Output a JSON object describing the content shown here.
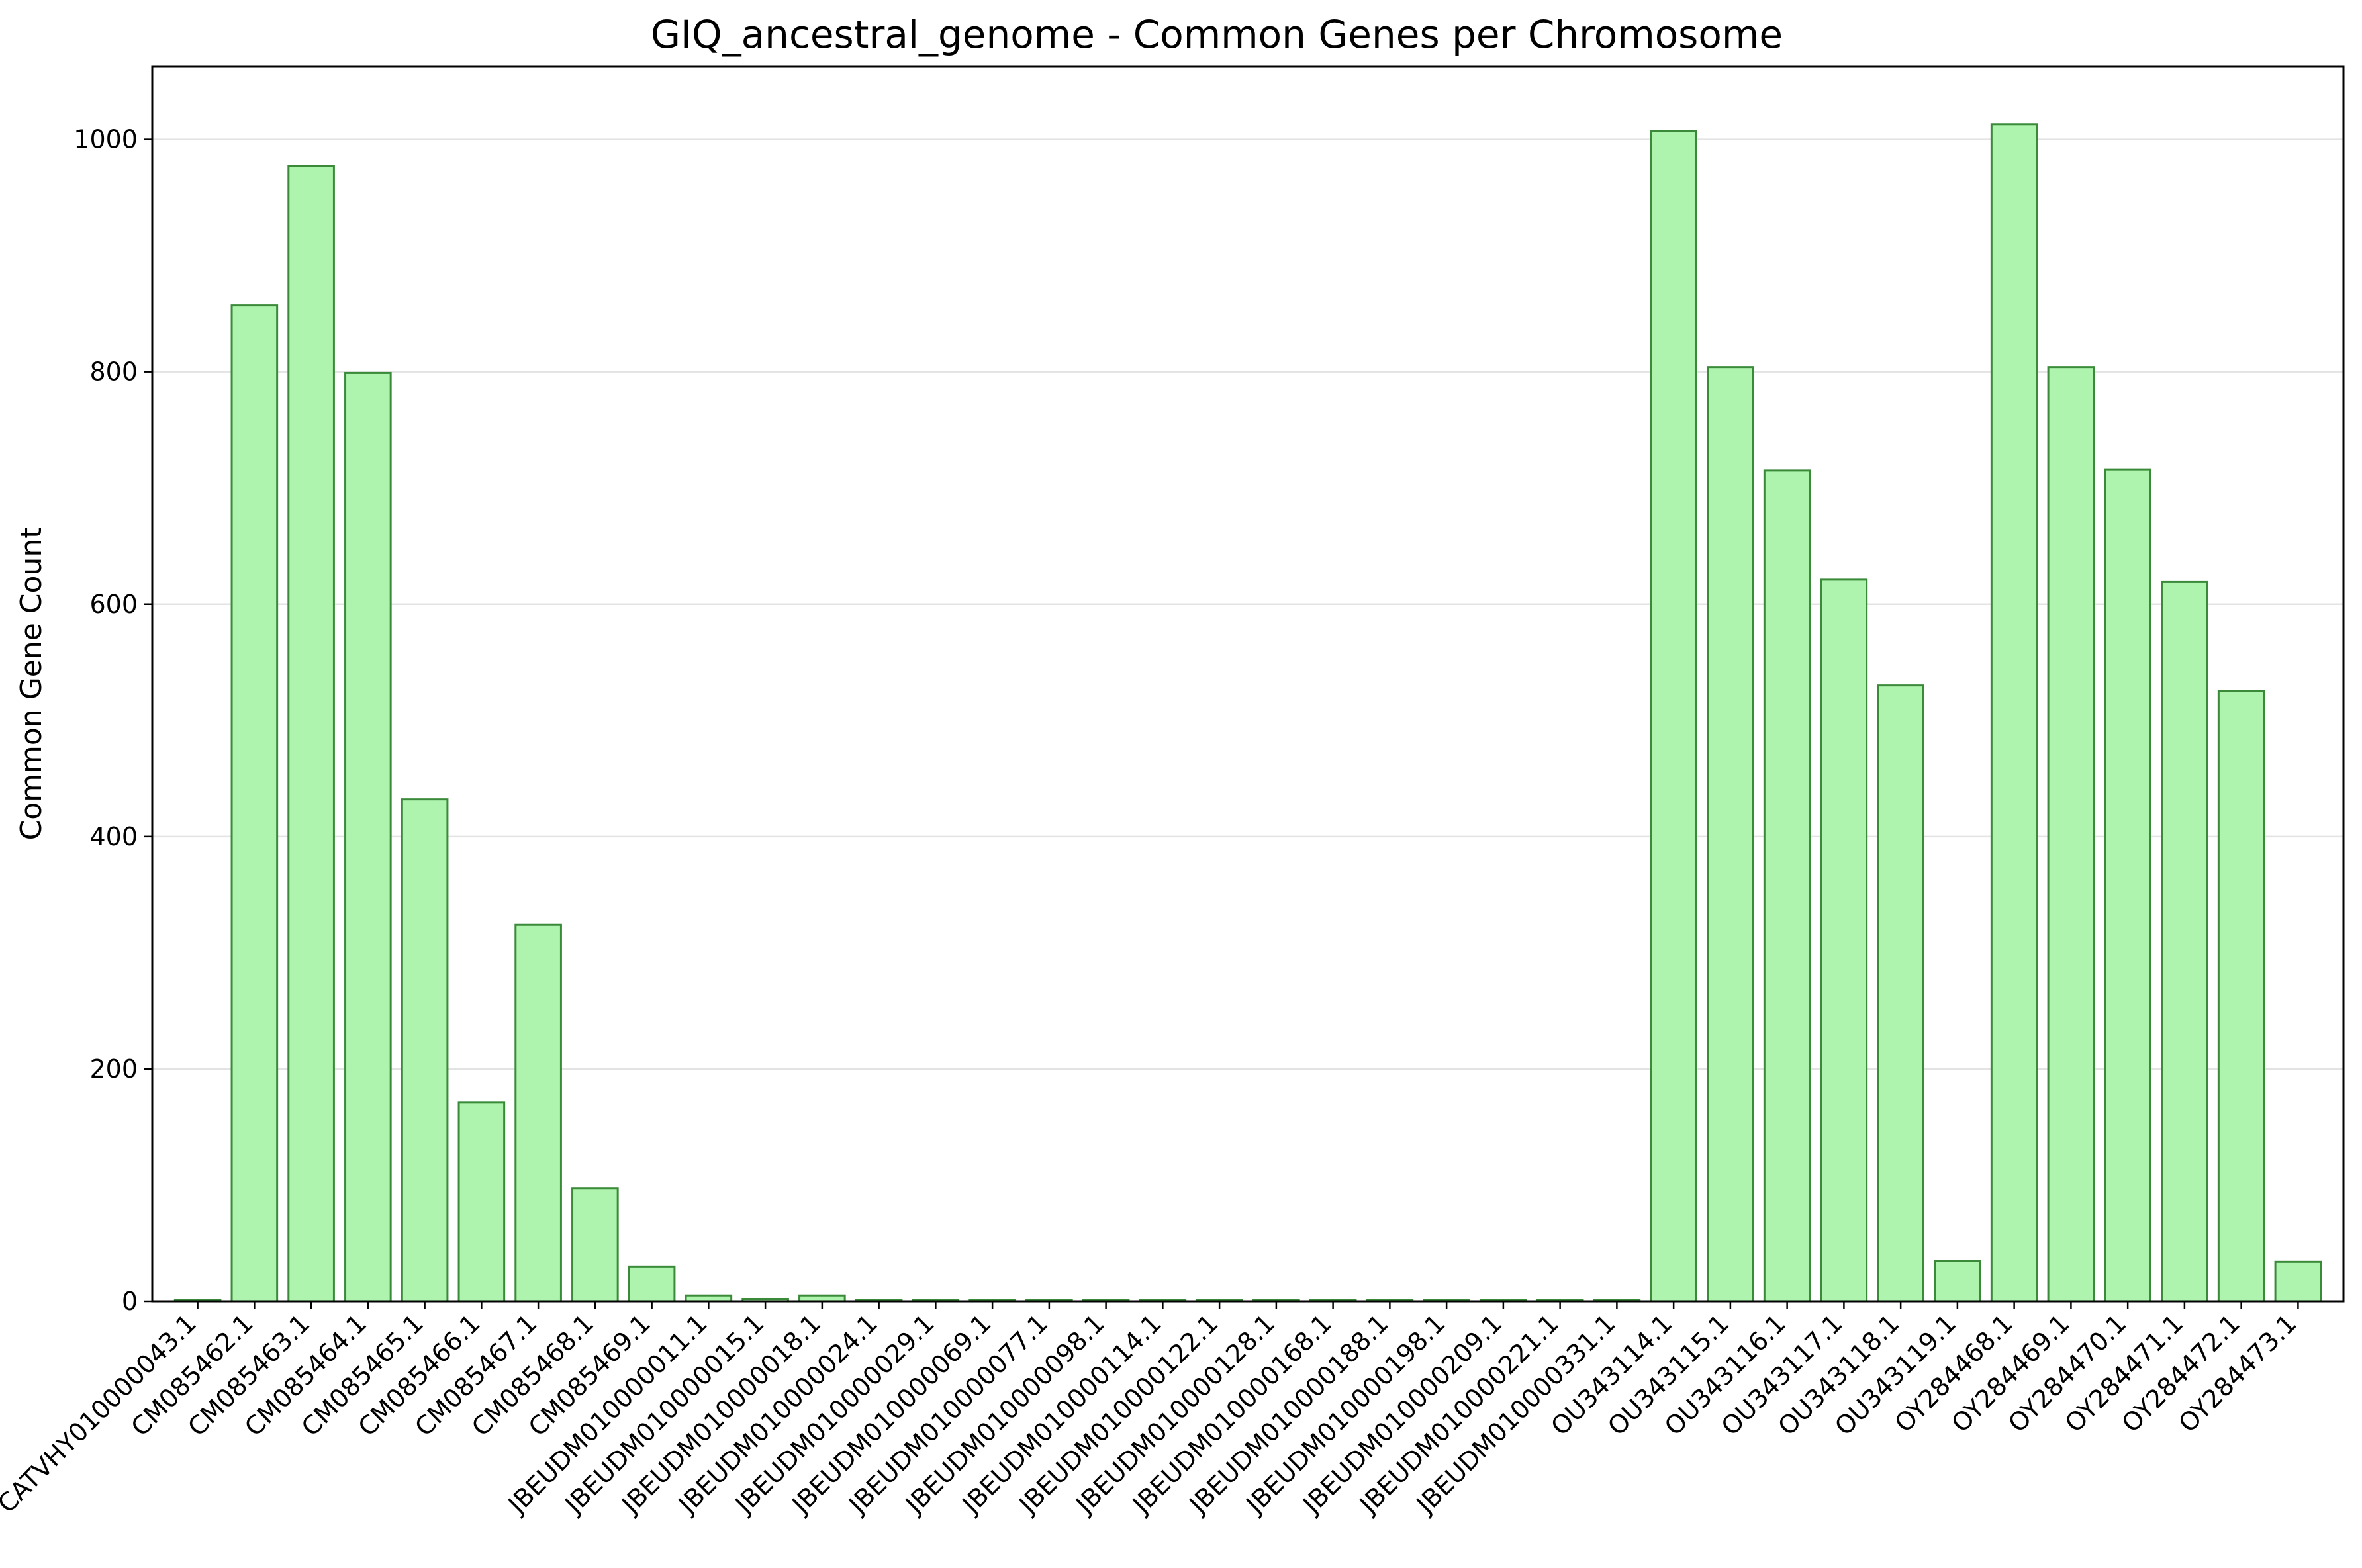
{
  "chart_data": {
    "type": "bar",
    "title": "GIQ_ancestral_genome - Common Genes per Chromosome",
    "xlabel": "",
    "ylabel": "Common Gene Count",
    "ylim": [
      0,
      1063
    ],
    "yticks": [
      0,
      200,
      400,
      600,
      800,
      1000
    ],
    "grid": "y",
    "bar_color": "#aef4ae",
    "bar_edge_color": "#3a8a3a",
    "categories": [
      "CATVHY010000043.1",
      "CM085462.1",
      "CM085463.1",
      "CM085464.1",
      "CM085465.1",
      "CM085466.1",
      "CM085467.1",
      "CM085468.1",
      "CM085469.1",
      "JBEUDM010000011.1",
      "JBEUDM010000015.1",
      "JBEUDM010000018.1",
      "JBEUDM010000024.1",
      "JBEUDM010000029.1",
      "JBEUDM010000069.1",
      "JBEUDM010000077.1",
      "JBEUDM010000098.1",
      "JBEUDM010000114.1",
      "JBEUDM010000122.1",
      "JBEUDM010000128.1",
      "JBEUDM010000168.1",
      "JBEUDM010000188.1",
      "JBEUDM010000198.1",
      "JBEUDM010000209.1",
      "JBEUDM010000221.1",
      "JBEUDM010000331.1",
      "OU343114.1",
      "OU343115.1",
      "OU343116.1",
      "OU343117.1",
      "OU343118.1",
      "OU343119.1",
      "OY284468.1",
      "OY284469.1",
      "OY284470.1",
      "OY284471.1",
      "OY284472.1",
      "OY284473.1"
    ],
    "values": [
      1,
      857,
      977,
      799,
      432,
      171,
      324,
      97,
      30,
      5,
      2,
      5,
      1,
      1,
      1,
      1,
      1,
      1,
      1,
      1,
      1,
      1,
      1,
      1,
      1,
      1,
      1007,
      804,
      715,
      621,
      530,
      35,
      1013,
      804,
      716,
      619,
      525,
      34
    ]
  }
}
